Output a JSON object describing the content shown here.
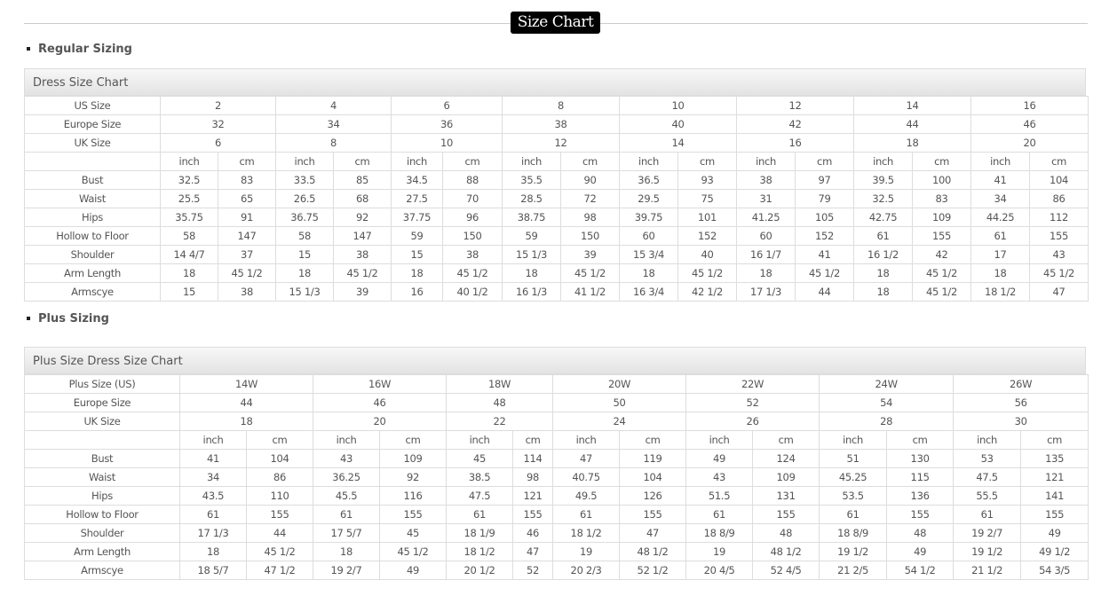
{
  "page_title": "Size Chart",
  "regular": {
    "section_label": "Regular Sizing",
    "caption": "Dress Size Chart",
    "header_rows": [
      {
        "label": "US Size",
        "values": [
          "2",
          "4",
          "6",
          "8",
          "10",
          "12",
          "14",
          "16"
        ]
      },
      {
        "label": "Europe Size",
        "values": [
          "32",
          "34",
          "36",
          "38",
          "40",
          "42",
          "44",
          "46"
        ]
      },
      {
        "label": "UK Size",
        "values": [
          "6",
          "8",
          "10",
          "12",
          "14",
          "16",
          "18",
          "20"
        ]
      }
    ],
    "unit_labels": [
      "inch",
      "cm"
    ],
    "rows": [
      {
        "label": "Bust",
        "values": [
          "32.5",
          "83",
          "33.5",
          "85",
          "34.5",
          "88",
          "35.5",
          "90",
          "36.5",
          "93",
          "38",
          "97",
          "39.5",
          "100",
          "41",
          "104"
        ]
      },
      {
        "label": "Waist",
        "values": [
          "25.5",
          "65",
          "26.5",
          "68",
          "27.5",
          "70",
          "28.5",
          "72",
          "29.5",
          "75",
          "31",
          "79",
          "32.5",
          "83",
          "34",
          "86"
        ]
      },
      {
        "label": "Hips",
        "values": [
          "35.75",
          "91",
          "36.75",
          "92",
          "37.75",
          "96",
          "38.75",
          "98",
          "39.75",
          "101",
          "41.25",
          "105",
          "42.75",
          "109",
          "44.25",
          "112"
        ]
      },
      {
        "label": "Hollow to Floor",
        "values": [
          "58",
          "147",
          "58",
          "147",
          "59",
          "150",
          "59",
          "150",
          "60",
          "152",
          "60",
          "152",
          "61",
          "155",
          "61",
          "155"
        ]
      },
      {
        "label": "Shoulder",
        "values": [
          "14 4/7",
          "37",
          "15",
          "38",
          "15",
          "38",
          "15 1/3",
          "39",
          "15 3/4",
          "40",
          "16 1/7",
          "41",
          "16 1/2",
          "42",
          "17",
          "43"
        ]
      },
      {
        "label": "Arm Length",
        "values": [
          "18",
          "45 1/2",
          "18",
          "45 1/2",
          "18",
          "45 1/2",
          "18",
          "45 1/2",
          "18",
          "45 1/2",
          "18",
          "45 1/2",
          "18",
          "45 1/2",
          "18",
          "45 1/2"
        ]
      },
      {
        "label": "Armscye",
        "values": [
          "15",
          "38",
          "15 1/3",
          "39",
          "16",
          "40 1/2",
          "16 1/3",
          "41 1/2",
          "16 3/4",
          "42 1/2",
          "17 1/3",
          "44",
          "18",
          "45 1/2",
          "18 1/2",
          "47"
        ]
      }
    ]
  },
  "plus": {
    "section_label": "Plus Sizing",
    "caption": "Plus Size Dress Size Chart",
    "header_rows": [
      {
        "label": "Plus Size (US)",
        "values": [
          "14W",
          "16W",
          "18W",
          "20W",
          "22W",
          "24W",
          "26W"
        ]
      },
      {
        "label": "Europe Size",
        "values": [
          "44",
          "46",
          "48",
          "50",
          "52",
          "54",
          "56"
        ]
      },
      {
        "label": "UK Size",
        "values": [
          "18",
          "20",
          "22",
          "24",
          "26",
          "28",
          "30"
        ]
      }
    ],
    "unit_labels": [
      "inch",
      "cm"
    ],
    "rows": [
      {
        "label": "Bust",
        "values": [
          "41",
          "104",
          "43",
          "109",
          "45",
          "114",
          "47",
          "119",
          "49",
          "124",
          "51",
          "130",
          "53",
          "135"
        ]
      },
      {
        "label": "Waist",
        "values": [
          "34",
          "86",
          "36.25",
          "92",
          "38.5",
          "98",
          "40.75",
          "104",
          "43",
          "109",
          "45.25",
          "115",
          "47.5",
          "121"
        ]
      },
      {
        "label": "Hips",
        "values": [
          "43.5",
          "110",
          "45.5",
          "116",
          "47.5",
          "121",
          "49.5",
          "126",
          "51.5",
          "131",
          "53.5",
          "136",
          "55.5",
          "141"
        ]
      },
      {
        "label": "Hollow to Floor",
        "values": [
          "61",
          "155",
          "61",
          "155",
          "61",
          "155",
          "61",
          "155",
          "61",
          "155",
          "61",
          "155",
          "61",
          "155"
        ]
      },
      {
        "label": "Shoulder",
        "values": [
          "17 1/3",
          "44",
          "17 5/7",
          "45",
          "18 1/9",
          "46",
          "18 1/2",
          "47",
          "18 8/9",
          "48",
          "18 8/9",
          "48",
          "19 2/7",
          "49"
        ]
      },
      {
        "label": "Arm Length",
        "values": [
          "18",
          "45 1/2",
          "18",
          "45 1/2",
          "18 1/2",
          "47",
          "19",
          "48 1/2",
          "19",
          "48 1/2",
          "19 1/2",
          "49",
          "19 1/2",
          "49 1/2"
        ]
      },
      {
        "label": "Armscye",
        "values": [
          "18 5/7",
          "47 1/2",
          "19 2/7",
          "49",
          "20 1/2",
          "52",
          "20 2/3",
          "52 1/2",
          "20 4/5",
          "52 4/5",
          "21 2/5",
          "54 1/2",
          "21 1/2",
          "54 3/5"
        ]
      }
    ]
  }
}
